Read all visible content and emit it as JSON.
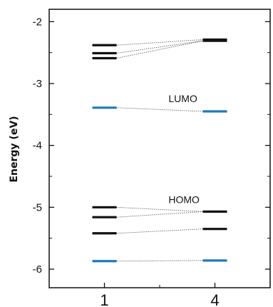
{
  "chart_data": {
    "type": "energy-level-diagram",
    "title": "",
    "xlabel": "",
    "ylabel": "Energy (eV)",
    "ylim": [
      -6.3,
      -1.8
    ],
    "y_ticks": [
      -2,
      -3,
      -4,
      -5,
      -6
    ],
    "y_tick_labels": [
      "-2",
      "-3",
      "-4",
      "-5",
      "-6"
    ],
    "minor_y_ticks": [
      -2.5,
      -3.5,
      -4.5,
      -5.5
    ],
    "categories": [
      "1",
      "4"
    ],
    "annotations": [
      {
        "text": "LUMO",
        "x": 1.58,
        "y": -3.3
      },
      {
        "text": "HOMO",
        "x": 1.58,
        "y": -4.93
      }
    ],
    "levels": {
      "1": [
        {
          "energy": -2.38,
          "color": "#111111"
        },
        {
          "energy": -2.51,
          "color": "#111111"
        },
        {
          "energy": -2.59,
          "color": "#111111"
        },
        {
          "energy": -3.39,
          "color": "#1f7ab8"
        },
        {
          "energy": -5.0,
          "color": "#111111"
        },
        {
          "energy": -5.16,
          "color": "#111111"
        },
        {
          "energy": -5.42,
          "color": "#111111"
        },
        {
          "energy": -5.87,
          "color": "#1f7ab8"
        }
      ],
      "4": [
        {
          "energy": -2.29,
          "color": "#111111"
        },
        {
          "energy": -2.31,
          "color": "#111111"
        },
        {
          "energy": -3.45,
          "color": "#1f7ab8"
        },
        {
          "energy": -5.07,
          "color": "#111111"
        },
        {
          "energy": -5.35,
          "color": "#111111"
        },
        {
          "energy": -5.86,
          "color": "#1f7ab8"
        }
      ]
    },
    "correlations": [
      [
        -2.38,
        -2.29
      ],
      [
        -2.51,
        -2.31
      ],
      [
        -2.59,
        -2.31
      ],
      [
        -3.39,
        -3.45
      ],
      [
        -5.0,
        -5.07
      ],
      [
        -5.16,
        -5.07
      ],
      [
        -5.42,
        -5.35
      ],
      [
        -5.87,
        -5.86
      ]
    ]
  }
}
